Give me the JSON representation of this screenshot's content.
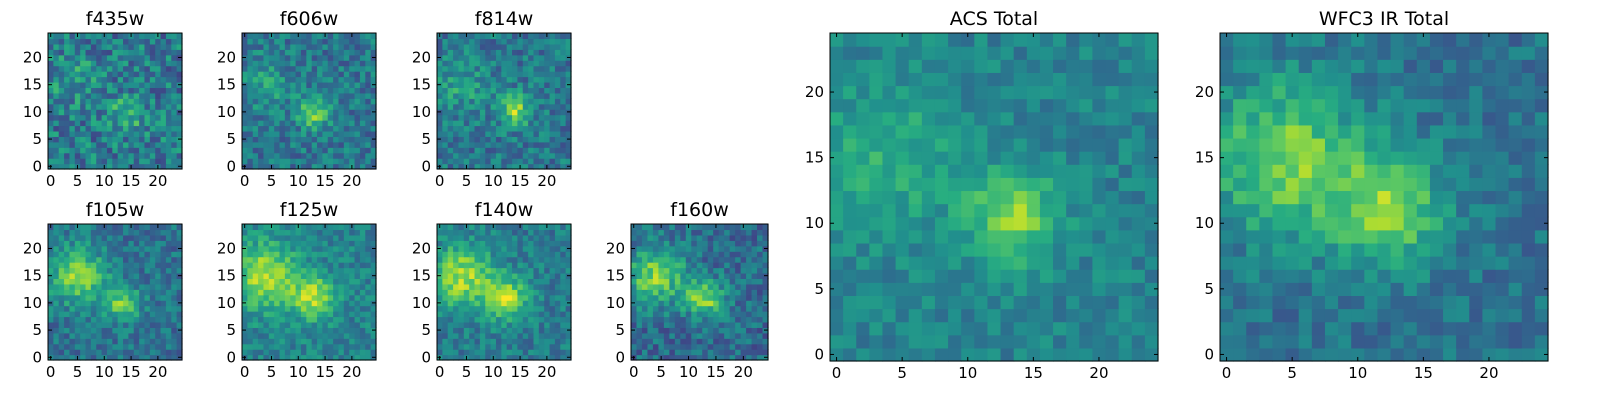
{
  "chart_data": [
    {
      "type": "heatmap",
      "title": "f435w",
      "x_ticks": [
        0,
        5,
        10,
        15,
        20
      ],
      "y_ticks": [
        0,
        5,
        10,
        15,
        20
      ],
      "xlim": [
        0,
        25
      ],
      "ylim": [
        0,
        25
      ],
      "grid_size": 25,
      "colormap": "viridis",
      "blobs": [
        {
          "x": 14,
          "y": 9.5,
          "sigma": 2.4,
          "amp": 0.22
        },
        {
          "x": 4,
          "y": 16,
          "sigma": 3.5,
          "amp": 0.12
        }
      ],
      "background": 0.42,
      "noise": 0.42,
      "seed": 11
    },
    {
      "type": "heatmap",
      "title": "f606w",
      "x_ticks": [
        0,
        5,
        10,
        15,
        20
      ],
      "y_ticks": [
        0,
        5,
        10,
        15,
        20
      ],
      "xlim": [
        0,
        25
      ],
      "ylim": [
        0,
        25
      ],
      "grid_size": 25,
      "colormap": "viridis",
      "blobs": [
        {
          "x": 13,
          "y": 10,
          "sigma": 2.0,
          "amp": 0.42
        },
        {
          "x": 4,
          "y": 15,
          "sigma": 3.5,
          "amp": 0.15
        }
      ],
      "background": 0.4,
      "noise": 0.32,
      "seed": 23
    },
    {
      "type": "heatmap",
      "title": "f814w",
      "x_ticks": [
        0,
        5,
        10,
        15,
        20
      ],
      "y_ticks": [
        0,
        5,
        10,
        15,
        20
      ],
      "xlim": [
        0,
        25
      ],
      "ylim": [
        0,
        25
      ],
      "grid_size": 25,
      "colormap": "viridis",
      "blobs": [
        {
          "x": 14,
          "y": 10.5,
          "sigma": 2.0,
          "amp": 0.45
        },
        {
          "x": 4,
          "y": 15,
          "sigma": 3.5,
          "amp": 0.18
        }
      ],
      "background": 0.4,
      "noise": 0.32,
      "seed": 37
    },
    {
      "type": "heatmap",
      "title": "f105w",
      "x_ticks": [
        0,
        5,
        10,
        15,
        20
      ],
      "y_ticks": [
        0,
        5,
        10,
        15,
        20
      ],
      "xlim": [
        0,
        25
      ],
      "ylim": [
        0,
        25
      ],
      "grid_size": 25,
      "colormap": "viridis",
      "blobs": [
        {
          "x": 13.5,
          "y": 10,
          "sigma": 2.3,
          "amp": 0.4
        },
        {
          "x": 5,
          "y": 15,
          "sigma": 3.8,
          "amp": 0.42
        }
      ],
      "background": 0.38,
      "noise": 0.28,
      "seed": 41
    },
    {
      "type": "heatmap",
      "title": "f125w",
      "x_ticks": [
        0,
        5,
        10,
        15,
        20
      ],
      "y_ticks": [
        0,
        5,
        10,
        15,
        20
      ],
      "xlim": [
        0,
        25
      ],
      "ylim": [
        0,
        25
      ],
      "grid_size": 25,
      "colormap": "viridis",
      "blobs": [
        {
          "x": 13,
          "y": 11,
          "sigma": 2.8,
          "amp": 0.42
        },
        {
          "x": 4,
          "y": 15,
          "sigma": 4.2,
          "amp": 0.45
        }
      ],
      "background": 0.45,
      "noise": 0.25,
      "seed": 53
    },
    {
      "type": "heatmap",
      "title": "f140w",
      "x_ticks": [
        0,
        5,
        10,
        15,
        20
      ],
      "y_ticks": [
        0,
        5,
        10,
        15,
        20
      ],
      "xlim": [
        0,
        25
      ],
      "ylim": [
        0,
        25
      ],
      "grid_size": 25,
      "colormap": "viridis",
      "blobs": [
        {
          "x": 12.5,
          "y": 11,
          "sigma": 2.8,
          "amp": 0.45
        },
        {
          "x": 4,
          "y": 15,
          "sigma": 4.0,
          "amp": 0.45
        }
      ],
      "background": 0.42,
      "noise": 0.26,
      "seed": 67
    },
    {
      "type": "heatmap",
      "title": "f160w",
      "x_ticks": [
        0,
        5,
        10,
        15,
        20
      ],
      "y_ticks": [
        0,
        5,
        10,
        15,
        20
      ],
      "xlim": [
        0,
        25
      ],
      "ylim": [
        0,
        25
      ],
      "grid_size": 25,
      "colormap": "viridis",
      "blobs": [
        {
          "x": 13,
          "y": 11,
          "sigma": 2.5,
          "amp": 0.48
        },
        {
          "x": 4,
          "y": 15,
          "sigma": 3.8,
          "amp": 0.45
        }
      ],
      "background": 0.35,
      "noise": 0.3,
      "seed": 79
    },
    {
      "type": "heatmap",
      "title": "ACS Total",
      "x_ticks": [
        0,
        5,
        10,
        15,
        20
      ],
      "y_ticks": [
        0,
        5,
        10,
        15,
        20
      ],
      "xlim": [
        0,
        25
      ],
      "ylim": [
        0,
        25
      ],
      "grid_size": 25,
      "colormap": "viridis",
      "blobs": [
        {
          "x": 13.5,
          "y": 10.5,
          "sigma": 2.4,
          "amp": 0.38
        },
        {
          "x": 4,
          "y": 15,
          "sigma": 4.0,
          "amp": 0.18
        }
      ],
      "background": 0.45,
      "noise": 0.2,
      "seed": 97
    },
    {
      "type": "heatmap",
      "title": "WFC3 IR Total",
      "x_ticks": [
        0,
        5,
        10,
        15,
        20
      ],
      "y_ticks": [
        0,
        5,
        10,
        15,
        20
      ],
      "xlim": [
        0,
        25
      ],
      "ylim": [
        0,
        25
      ],
      "grid_size": 25,
      "colormap": "viridis",
      "blobs": [
        {
          "x": 12.5,
          "y": 11,
          "sigma": 3.0,
          "amp": 0.42
        },
        {
          "x": 4.5,
          "y": 15,
          "sigma": 4.2,
          "amp": 0.42
        }
      ],
      "background": 0.38,
      "noise": 0.22,
      "seed": 113
    }
  ]
}
